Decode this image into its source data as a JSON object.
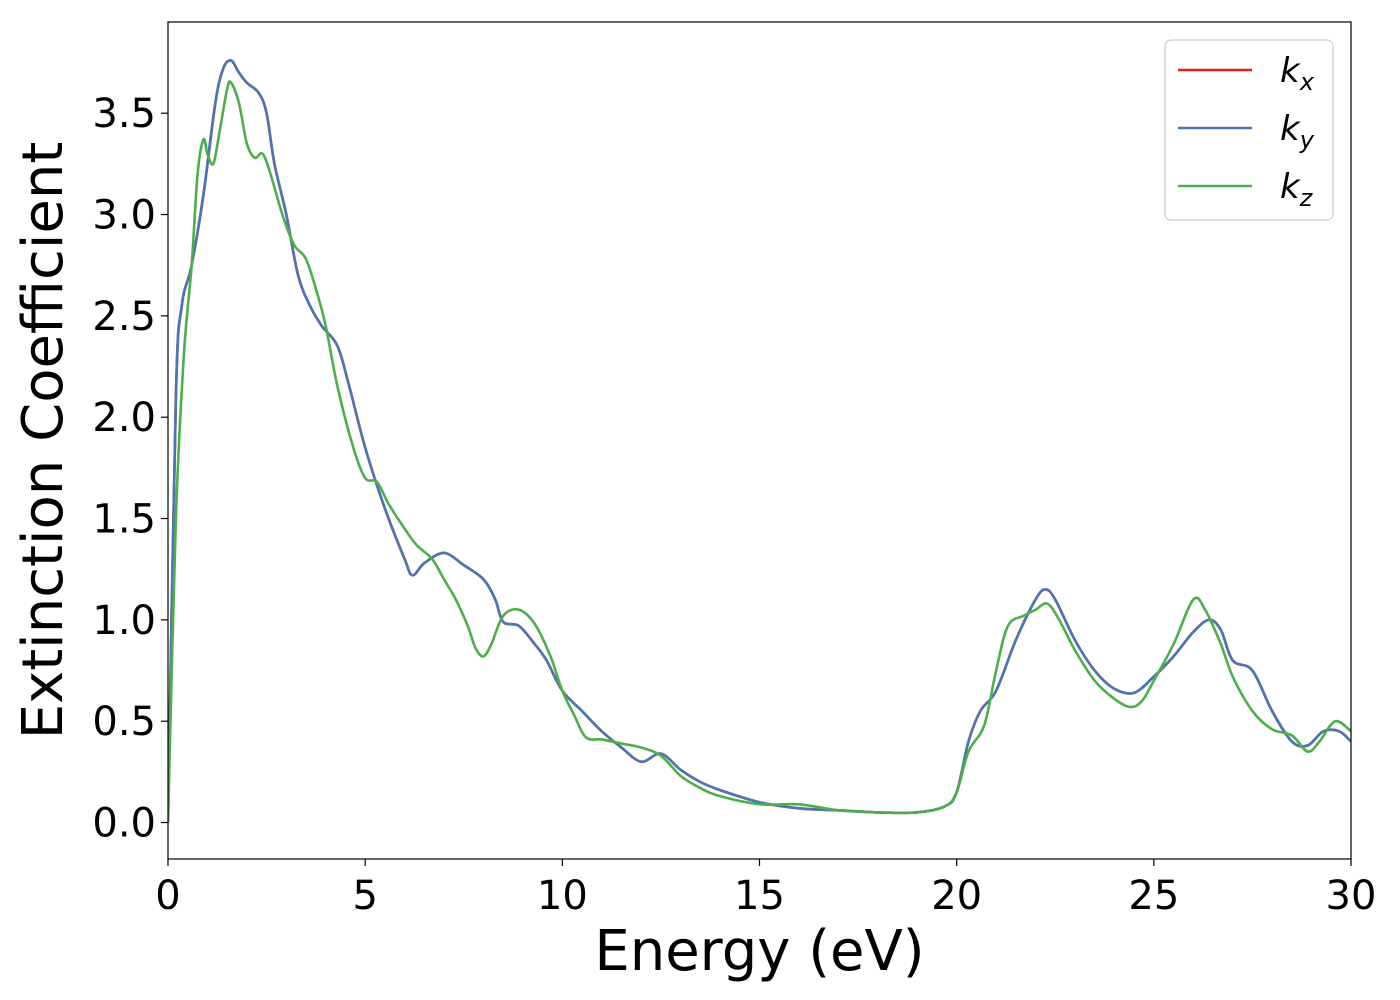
{
  "chart_data": {
    "type": "line",
    "xlabel": "Energy (eV)",
    "ylabel": "Extinction Coefficient",
    "xlim": [
      0,
      30
    ],
    "ylim": [
      -0.18,
      3.95
    ],
    "xticks": [
      0,
      5,
      10,
      15,
      20,
      25,
      30
    ],
    "xtick_labels": [
      "0",
      "5",
      "10",
      "15",
      "20",
      "25",
      "30"
    ],
    "yticks": [
      0.0,
      0.5,
      1.0,
      1.5,
      2.0,
      2.5,
      3.0,
      3.5
    ],
    "ytick_labels": [
      "0.0",
      "0.5",
      "1.0",
      "1.5",
      "2.0",
      "2.5",
      "3.0",
      "3.5"
    ],
    "grid": false,
    "legend_position": "top-right",
    "series": [
      {
        "name": "kx",
        "label_main": "k",
        "label_sub": "x",
        "color": "#e41a1c",
        "points": [
          [
            0,
            0
          ],
          [
            0.2,
            2.1
          ],
          [
            0.35,
            2.55
          ],
          [
            0.6,
            2.75
          ],
          [
            0.9,
            3.1
          ],
          [
            1.2,
            3.55
          ],
          [
            1.4,
            3.72
          ],
          [
            1.6,
            3.76
          ],
          [
            1.8,
            3.7
          ],
          [
            2.0,
            3.65
          ],
          [
            2.3,
            3.6
          ],
          [
            2.5,
            3.5
          ],
          [
            2.7,
            3.25
          ],
          [
            3.0,
            3.0
          ],
          [
            3.3,
            2.7
          ],
          [
            3.6,
            2.55
          ],
          [
            3.9,
            2.45
          ],
          [
            4.3,
            2.35
          ],
          [
            4.6,
            2.15
          ],
          [
            5.0,
            1.85
          ],
          [
            5.5,
            1.55
          ],
          [
            6.0,
            1.3
          ],
          [
            6.2,
            1.22
          ],
          [
            6.5,
            1.28
          ],
          [
            7.0,
            1.33
          ],
          [
            7.5,
            1.27
          ],
          [
            8.0,
            1.2
          ],
          [
            8.3,
            1.1
          ],
          [
            8.5,
            0.99
          ],
          [
            8.9,
            0.97
          ],
          [
            9.3,
            0.88
          ],
          [
            9.6,
            0.8
          ],
          [
            10.0,
            0.65
          ],
          [
            10.5,
            0.55
          ],
          [
            11.0,
            0.45
          ],
          [
            11.5,
            0.37
          ],
          [
            12.0,
            0.3
          ],
          [
            12.5,
            0.34
          ],
          [
            13.0,
            0.26
          ],
          [
            13.5,
            0.2
          ],
          [
            14.0,
            0.16
          ],
          [
            15.0,
            0.1
          ],
          [
            16.0,
            0.07
          ],
          [
            17.0,
            0.06
          ],
          [
            18.0,
            0.05
          ],
          [
            19.0,
            0.05
          ],
          [
            19.7,
            0.08
          ],
          [
            20.0,
            0.15
          ],
          [
            20.3,
            0.4
          ],
          [
            20.6,
            0.55
          ],
          [
            21.0,
            0.65
          ],
          [
            21.5,
            0.9
          ],
          [
            22.0,
            1.1
          ],
          [
            22.25,
            1.15
          ],
          [
            22.5,
            1.1
          ],
          [
            23.0,
            0.9
          ],
          [
            23.5,
            0.75
          ],
          [
            24.0,
            0.66
          ],
          [
            24.5,
            0.64
          ],
          [
            25.0,
            0.72
          ],
          [
            25.5,
            0.82
          ],
          [
            26.0,
            0.94
          ],
          [
            26.4,
            1.0
          ],
          [
            26.7,
            0.95
          ],
          [
            27.0,
            0.8
          ],
          [
            27.5,
            0.75
          ],
          [
            28.0,
            0.55
          ],
          [
            28.5,
            0.4
          ],
          [
            28.9,
            0.38
          ],
          [
            29.3,
            0.45
          ],
          [
            29.7,
            0.45
          ],
          [
            30.0,
            0.4
          ]
        ]
      },
      {
        "name": "ky",
        "label_main": "k",
        "label_sub": "y",
        "color": "#4a77b4",
        "points": [
          [
            0,
            0
          ],
          [
            0.2,
            2.1
          ],
          [
            0.35,
            2.55
          ],
          [
            0.6,
            2.75
          ],
          [
            0.9,
            3.1
          ],
          [
            1.2,
            3.55
          ],
          [
            1.4,
            3.72
          ],
          [
            1.6,
            3.76
          ],
          [
            1.8,
            3.7
          ],
          [
            2.0,
            3.65
          ],
          [
            2.3,
            3.6
          ],
          [
            2.5,
            3.5
          ],
          [
            2.7,
            3.25
          ],
          [
            3.0,
            3.0
          ],
          [
            3.3,
            2.7
          ],
          [
            3.6,
            2.55
          ],
          [
            3.9,
            2.45
          ],
          [
            4.3,
            2.35
          ],
          [
            4.6,
            2.15
          ],
          [
            5.0,
            1.85
          ],
          [
            5.5,
            1.55
          ],
          [
            6.0,
            1.3
          ],
          [
            6.2,
            1.22
          ],
          [
            6.5,
            1.28
          ],
          [
            7.0,
            1.33
          ],
          [
            7.5,
            1.27
          ],
          [
            8.0,
            1.2
          ],
          [
            8.3,
            1.1
          ],
          [
            8.5,
            0.99
          ],
          [
            8.9,
            0.97
          ],
          [
            9.3,
            0.88
          ],
          [
            9.6,
            0.8
          ],
          [
            10.0,
            0.65
          ],
          [
            10.5,
            0.55
          ],
          [
            11.0,
            0.45
          ],
          [
            11.5,
            0.37
          ],
          [
            12.0,
            0.3
          ],
          [
            12.5,
            0.34
          ],
          [
            13.0,
            0.26
          ],
          [
            13.5,
            0.2
          ],
          [
            14.0,
            0.16
          ],
          [
            15.0,
            0.1
          ],
          [
            16.0,
            0.07
          ],
          [
            17.0,
            0.06
          ],
          [
            18.0,
            0.05
          ],
          [
            19.0,
            0.05
          ],
          [
            19.7,
            0.08
          ],
          [
            20.0,
            0.15
          ],
          [
            20.3,
            0.4
          ],
          [
            20.6,
            0.55
          ],
          [
            21.0,
            0.65
          ],
          [
            21.5,
            0.9
          ],
          [
            22.0,
            1.1
          ],
          [
            22.25,
            1.15
          ],
          [
            22.5,
            1.1
          ],
          [
            23.0,
            0.9
          ],
          [
            23.5,
            0.75
          ],
          [
            24.0,
            0.66
          ],
          [
            24.5,
            0.64
          ],
          [
            25.0,
            0.72
          ],
          [
            25.5,
            0.82
          ],
          [
            26.0,
            0.94
          ],
          [
            26.4,
            1.0
          ],
          [
            26.7,
            0.95
          ],
          [
            27.0,
            0.8
          ],
          [
            27.5,
            0.75
          ],
          [
            28.0,
            0.55
          ],
          [
            28.5,
            0.4
          ],
          [
            28.9,
            0.38
          ],
          [
            29.3,
            0.45
          ],
          [
            29.7,
            0.45
          ],
          [
            30.0,
            0.4
          ]
        ]
      },
      {
        "name": "kz",
        "label_main": "k",
        "label_sub": "z",
        "color": "#4daf4a",
        "points": [
          [
            0,
            0
          ],
          [
            0.2,
            1.5
          ],
          [
            0.4,
            2.3
          ],
          [
            0.6,
            2.75
          ],
          [
            0.75,
            3.2
          ],
          [
            0.9,
            3.37
          ],
          [
            1.0,
            3.3
          ],
          [
            1.15,
            3.25
          ],
          [
            1.3,
            3.4
          ],
          [
            1.5,
            3.62
          ],
          [
            1.6,
            3.65
          ],
          [
            1.8,
            3.55
          ],
          [
            2.0,
            3.35
          ],
          [
            2.2,
            3.28
          ],
          [
            2.4,
            3.3
          ],
          [
            2.6,
            3.2
          ],
          [
            2.9,
            3.0
          ],
          [
            3.2,
            2.85
          ],
          [
            3.5,
            2.78
          ],
          [
            3.8,
            2.6
          ],
          [
            4.0,
            2.45
          ],
          [
            4.3,
            2.15
          ],
          [
            4.7,
            1.85
          ],
          [
            5.0,
            1.7
          ],
          [
            5.3,
            1.68
          ],
          [
            5.6,
            1.57
          ],
          [
            6.0,
            1.45
          ],
          [
            6.3,
            1.37
          ],
          [
            6.7,
            1.3
          ],
          [
            7.0,
            1.2
          ],
          [
            7.3,
            1.1
          ],
          [
            7.6,
            0.97
          ],
          [
            7.8,
            0.86
          ],
          [
            8.0,
            0.82
          ],
          [
            8.2,
            0.88
          ],
          [
            8.5,
            1.02
          ],
          [
            8.9,
            1.05
          ],
          [
            9.3,
            0.98
          ],
          [
            9.7,
            0.82
          ],
          [
            10.0,
            0.65
          ],
          [
            10.3,
            0.53
          ],
          [
            10.6,
            0.42
          ],
          [
            11.0,
            0.41
          ],
          [
            11.5,
            0.39
          ],
          [
            12.0,
            0.37
          ],
          [
            12.5,
            0.33
          ],
          [
            13.0,
            0.23
          ],
          [
            13.5,
            0.17
          ],
          [
            14.0,
            0.13
          ],
          [
            15.0,
            0.09
          ],
          [
            16.0,
            0.09
          ],
          [
            17.0,
            0.06
          ],
          [
            18.0,
            0.05
          ],
          [
            19.0,
            0.05
          ],
          [
            19.7,
            0.08
          ],
          [
            20.0,
            0.15
          ],
          [
            20.3,
            0.35
          ],
          [
            20.7,
            0.48
          ],
          [
            21.0,
            0.75
          ],
          [
            21.3,
            0.97
          ],
          [
            21.7,
            1.02
          ],
          [
            22.0,
            1.05
          ],
          [
            22.3,
            1.08
          ],
          [
            22.6,
            1.0
          ],
          [
            23.0,
            0.85
          ],
          [
            23.5,
            0.7
          ],
          [
            24.0,
            0.61
          ],
          [
            24.4,
            0.57
          ],
          [
            24.7,
            0.6
          ],
          [
            25.0,
            0.7
          ],
          [
            25.5,
            0.88
          ],
          [
            26.0,
            1.1
          ],
          [
            26.3,
            1.05
          ],
          [
            26.7,
            0.88
          ],
          [
            27.0,
            0.72
          ],
          [
            27.5,
            0.55
          ],
          [
            28.0,
            0.46
          ],
          [
            28.5,
            0.43
          ],
          [
            28.9,
            0.35
          ],
          [
            29.2,
            0.4
          ],
          [
            29.6,
            0.5
          ],
          [
            30.0,
            0.45
          ]
        ]
      }
    ]
  }
}
